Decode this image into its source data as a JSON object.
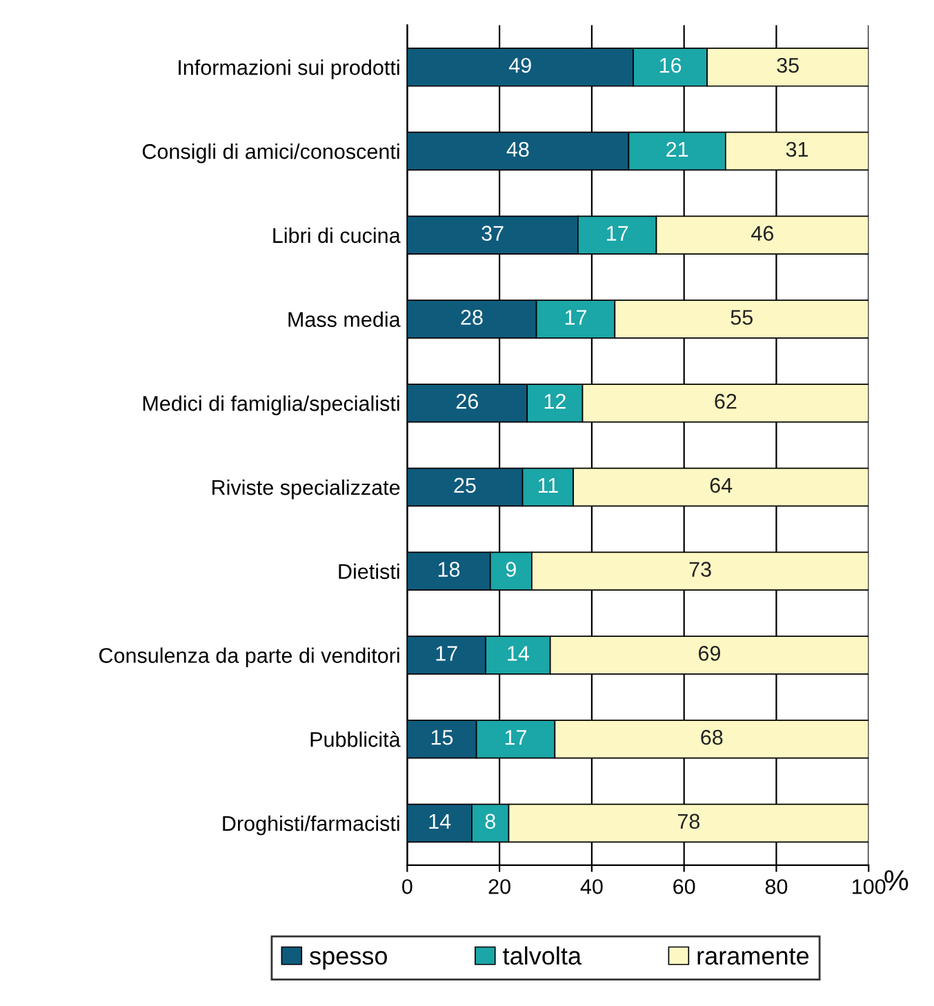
{
  "chart_data": {
    "type": "bar",
    "orientation": "horizontal",
    "stacked": true,
    "xlabel": "%",
    "categories": [
      "Informazioni sui prodotti",
      "Consigli di amici/conoscenti",
      "Libri di cucina",
      "Mass media",
      "Medici di famiglia/specialisti",
      "Riviste specializzate",
      "Dietisti",
      "Consulenza da parte di venditori",
      "Pubblicità",
      "Droghisti/farmacisti"
    ],
    "series": [
      {
        "name": "spesso",
        "color": "#0f5b7c",
        "values": [
          49,
          48,
          37,
          28,
          26,
          25,
          18,
          17,
          15,
          14
        ]
      },
      {
        "name": "talvolta",
        "color": "#1ba6a8",
        "values": [
          16,
          21,
          17,
          17,
          12,
          11,
          9,
          14,
          17,
          8
        ]
      },
      {
        "name": "raramente",
        "color": "#fdf8c3",
        "values": [
          35,
          31,
          46,
          55,
          62,
          64,
          73,
          69,
          68,
          78
        ]
      }
    ],
    "xlim": [
      0,
      100
    ],
    "xticks": [
      0,
      20,
      40,
      60,
      80,
      100
    ],
    "grid": "x",
    "legend": "bottom",
    "data_labels": true
  }
}
